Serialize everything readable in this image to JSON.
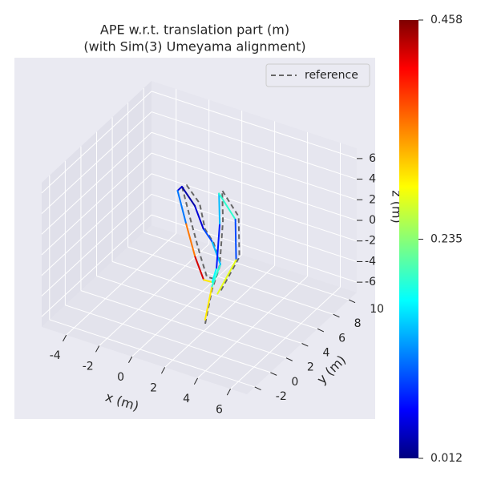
{
  "chart_data": {
    "type": "trajectory3d",
    "title": "APE w.r.t. translation part (m)",
    "subtitle": "(with Sim(3) Umeyama alignment)",
    "x_label": "x (m)",
    "y_label": "y (m)",
    "z_label": "z (m)",
    "xlim": [
      -5.5,
      7
    ],
    "ylim": [
      -3,
      11
    ],
    "zlim": [
      -7,
      7
    ],
    "xticks": [
      -4,
      -2,
      0,
      2,
      4,
      6
    ],
    "yticks": [
      -2,
      0,
      2,
      4,
      6,
      8,
      10
    ],
    "zticks": [
      -6,
      -4,
      -2,
      0,
      2,
      4,
      6
    ],
    "colorbar": {
      "clim": [
        0.012,
        0.458
      ],
      "ticks": [
        0.012,
        0.235,
        0.458
      ]
    },
    "legend": {
      "position": "upper right",
      "entries": [
        "reference"
      ]
    },
    "reference": {
      "name": "reference",
      "color": "#666666",
      "x": [
        3.6,
        3.3,
        3.1,
        2.2,
        1.2,
        0.2,
        -1.3,
        -1.8,
        -0.8,
        0.7,
        1.6,
        2.6,
        3.1,
        2.1,
        1.1,
        2.1,
        3.1,
        3.4
      ],
      "y": [
        -1.2,
        0.3,
        1.8,
        2.8,
        3.8,
        5.2,
        6.7,
        7.2,
        6.2,
        4.2,
        3.2,
        2.2,
        1.7,
        4.2,
        6.2,
        6.2,
        4.2,
        1.2
      ],
      "z": [
        -3.2,
        -1.1,
        0.2,
        1.1,
        1.2,
        2.2,
        2.1,
        1.2,
        -0.8,
        -1.8,
        -2.8,
        -1.8,
        0.2,
        2.2,
        3.2,
        1.2,
        -0.8,
        -1.8
      ]
    },
    "trajectory": {
      "x": [
        3.5,
        3.2,
        3.0,
        2.0,
        1.0,
        0.0,
        -1.5,
        -2.0,
        -1.0,
        0.5,
        1.5,
        2.5,
        3.0,
        2.0,
        1.0,
        2.0,
        3.0,
        3.3
      ],
      "y": [
        -1,
        0.5,
        2,
        3,
        4,
        5,
        6.5,
        7,
        6,
        4,
        3,
        2,
        1.5,
        4,
        6,
        6,
        4,
        1
      ],
      "z": [
        -3,
        -1,
        0,
        1,
        1,
        2,
        2,
        1,
        -1,
        -2,
        -3,
        -2,
        0,
        2,
        3,
        1,
        -1,
        -2
      ],
      "error": [
        0.25,
        0.3,
        0.2,
        0.15,
        0.1,
        0.05,
        0.03,
        0.05,
        0.12,
        0.35,
        0.42,
        0.3,
        0.18,
        0.08,
        0.15,
        0.2,
        0.1,
        0.28
      ]
    }
  }
}
